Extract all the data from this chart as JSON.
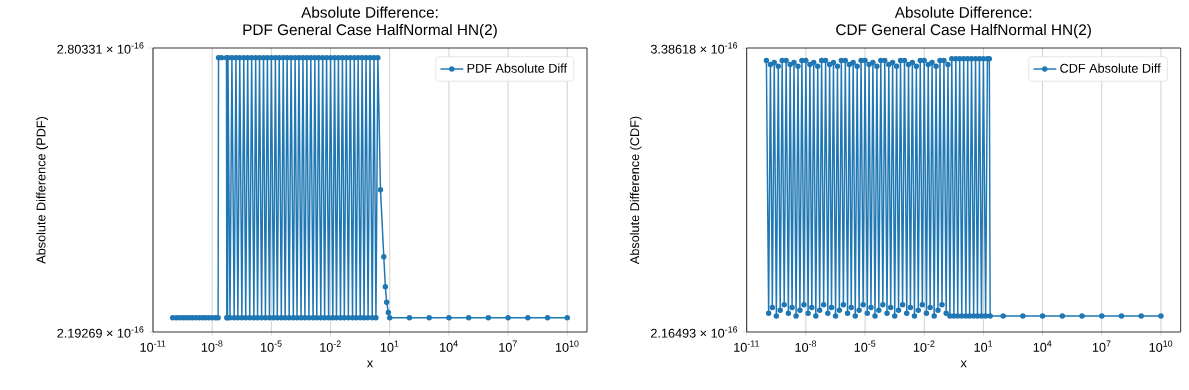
{
  "chart_data": [
    {
      "type": "line",
      "title": "Absolute Difference:",
      "subtitle": "PDF General Case HalfNormal HN(2)",
      "xlabel": "x",
      "ylabel": "Absolute Difference (PDF)",
      "log": "xy",
      "grid": "x",
      "legend": "top right",
      "marker": "circle",
      "line_style": "solid",
      "xlim": [
        1e-11,
        100000000000.0
      ],
      "ylim": [
        2.19269e-16,
        2.80331e-16
      ],
      "xticks": [
        {
          "value": 1e-11,
          "label": "10$^{-11}$"
        },
        {
          "value": 1e-08,
          "label": "10$^{-8}$"
        },
        {
          "value": 1e-05,
          "label": "10$^{-5}$"
        },
        {
          "value": 0.01,
          "label": "10$^{-2}$"
        },
        {
          "value": 10,
          "label": "10$^{1}$"
        },
        {
          "value": 10000,
          "label": "10$^{4}$"
        },
        {
          "value": 10000000,
          "label": "10$^{7}$"
        },
        {
          "value": 10000000000,
          "label": "10$^{10}$"
        }
      ],
      "yticks": [
        {
          "value": 2.19269e-16,
          "label": "2.19269 × 10$^{-16}$"
        },
        {
          "value": 2.80331e-16,
          "label": "2.80331 × 10$^{-16}$"
        }
      ],
      "series": [
        {
          "name": "PDF Absolute Diff",
          "color": "#1f77b4",
          "x": [
            1e-10,
            1.5e-10,
            2.2e-10,
            3.3e-10,
            4.7e-10,
            6.8e-10,
            1e-09,
            1.5e-09,
            2.2e-09,
            3.3e-09,
            4.7e-09,
            6.8e-09,
            1e-08,
            1.5e-08,
            2e-08,
            2.1e-08,
            3e-08,
            5.3e-08,
            5.5e-08,
            6e-08,
            6.3e-08,
            8e-08,
            1e-07,
            1.3e-07,
            1.6e-07,
            2e-07,
            2.5e-07,
            3.2e-07,
            4e-07,
            5e-07,
            6.3e-07,
            8e-07,
            1e-06,
            1.3e-06,
            1.6e-06,
            2e-06,
            2.5e-06,
            3.2e-06,
            4e-06,
            5e-06,
            6.3e-06,
            8e-06,
            1e-05,
            1.3e-05,
            1.6e-05,
            2e-05,
            2.5e-05,
            3.2e-05,
            4e-05,
            5e-05,
            6.3e-05,
            8e-05,
            0.0001,
            0.00013,
            0.00016,
            0.0002,
            0.00025,
            0.00032,
            0.0004,
            0.0005,
            0.00063,
            0.0008,
            0.001,
            0.0013,
            0.0016,
            0.002,
            0.0025,
            0.0032,
            0.004,
            0.005,
            0.0063,
            0.008,
            0.01,
            0.013,
            0.016,
            0.02,
            0.025,
            0.032,
            0.04,
            0.05,
            0.063,
            0.08,
            0.1,
            0.13,
            0.16,
            0.2,
            0.25,
            0.32,
            0.4,
            0.5,
            0.63,
            0.8,
            1,
            1.3,
            1.6,
            2,
            2.5,
            3.4,
            5,
            6,
            7,
            8.5,
            10,
            100,
            1000.0,
            10000.0,
            100000.0,
            1000000.0,
            10000000.0,
            100000000.0,
            1000000000.0,
            10000000000.0
          ],
          "values": [
            2.22e-16,
            2.22e-16,
            2.22e-16,
            2.22e-16,
            2.22e-16,
            2.22e-16,
            2.22e-16,
            2.22e-16,
            2.22e-16,
            2.22e-16,
            2.22e-16,
            2.22e-16,
            2.22e-16,
            2.22e-16,
            2.22e-16,
            2.78e-16,
            2.78e-16,
            2.78e-16,
            2.22e-16,
            2.22e-16,
            2.78e-16,
            2.22e-16,
            2.78e-16,
            2.22e-16,
            2.78e-16,
            2.22e-16,
            2.78e-16,
            2.22e-16,
            2.78e-16,
            2.22e-16,
            2.78e-16,
            2.22e-16,
            2.78e-16,
            2.22e-16,
            2.78e-16,
            2.22e-16,
            2.78e-16,
            2.22e-16,
            2.78e-16,
            2.22e-16,
            2.78e-16,
            2.22e-16,
            2.78e-16,
            2.22e-16,
            2.78e-16,
            2.22e-16,
            2.78e-16,
            2.22e-16,
            2.78e-16,
            2.22e-16,
            2.78e-16,
            2.22e-16,
            2.78e-16,
            2.22e-16,
            2.78e-16,
            2.22e-16,
            2.78e-16,
            2.22e-16,
            2.78e-16,
            2.22e-16,
            2.78e-16,
            2.22e-16,
            2.78e-16,
            2.22e-16,
            2.78e-16,
            2.22e-16,
            2.78e-16,
            2.22e-16,
            2.78e-16,
            2.22e-16,
            2.78e-16,
            2.22e-16,
            2.78e-16,
            2.22e-16,
            2.78e-16,
            2.22e-16,
            2.78e-16,
            2.22e-16,
            2.78e-16,
            2.22e-16,
            2.78e-16,
            2.22e-16,
            2.78e-16,
            2.22e-16,
            2.78e-16,
            2.22e-16,
            2.78e-16,
            2.22e-16,
            2.78e-16,
            2.22e-16,
            2.78e-16,
            2.22e-16,
            2.78e-16,
            2.22e-16,
            2.78e-16,
            2.22e-16,
            2.78e-16,
            2.48e-16,
            2.34e-16,
            2.28e-16,
            2.25e-16,
            2.23e-16,
            2.22e-16,
            2.22e-16,
            2.22e-16,
            2.22e-16,
            2.22e-16,
            2.22e-16,
            2.22e-16,
            2.22e-16,
            2.22e-16,
            2.22e-16
          ]
        }
      ]
    },
    {
      "type": "line",
      "title": "Absolute Difference:",
      "subtitle": "CDF General Case HalfNormal HN(2)",
      "xlabel": "x",
      "ylabel": "Absolute Difference (CDF)",
      "log": "xy",
      "grid": "x",
      "legend": "top right",
      "marker": "circle",
      "line_style": "solid",
      "xlim": [
        1e-11,
        100000000000.0
      ],
      "ylim": [
        2.16493e-16,
        3.38618e-16
      ],
      "xticks": [
        {
          "value": 1e-11,
          "label": "10$^{-11}$"
        },
        {
          "value": 1e-08,
          "label": "10$^{-8}$"
        },
        {
          "value": 1e-05,
          "label": "10$^{-5}$"
        },
        {
          "value": 0.01,
          "label": "10$^{-2}$"
        },
        {
          "value": 10,
          "label": "10$^{1}$"
        },
        {
          "value": 10000,
          "label": "10$^{4}$"
        },
        {
          "value": 10000000,
          "label": "10$^{7}$"
        },
        {
          "value": 10000000000,
          "label": "10$^{10}$"
        }
      ],
      "yticks": [
        {
          "value": 2.16493e-16,
          "label": "2.16493 × 10$^{-16}$"
        },
        {
          "value": 3.38618e-16,
          "label": "3.38618 × 10$^{-16}$"
        }
      ],
      "series": [
        {
          "name": "CDF Absolute Diff",
          "color": "#1f77b4",
          "x": [
            1e-10,
            1.3e-10,
            1.6e-10,
            2e-10,
            2.5e-10,
            3.2e-10,
            4e-10,
            5e-10,
            6.3e-10,
            8e-10,
            1e-09,
            1.3e-09,
            1.6e-09,
            2e-09,
            2.5e-09,
            3.2e-09,
            4e-09,
            5e-09,
            6.3e-09,
            8e-09,
            1e-08,
            1.3e-08,
            1.6e-08,
            2e-08,
            2.5e-08,
            3.2e-08,
            4e-08,
            5e-08,
            6.3e-08,
            8e-08,
            1e-07,
            1.3e-07,
            1.6e-07,
            2e-07,
            2.5e-07,
            3.2e-07,
            4e-07,
            5e-07,
            6.3e-07,
            8e-07,
            1e-06,
            1.3e-06,
            1.6e-06,
            2e-06,
            2.5e-06,
            3.2e-06,
            4e-06,
            5e-06,
            6.3e-06,
            8e-06,
            1e-05,
            1.3e-05,
            1.6e-05,
            2e-05,
            2.5e-05,
            3.2e-05,
            4e-05,
            5e-05,
            6.3e-05,
            8e-05,
            0.0001,
            0.00013,
            0.00016,
            0.0002,
            0.00025,
            0.00032,
            0.0004,
            0.0005,
            0.00063,
            0.0008,
            0.001,
            0.0013,
            0.0016,
            0.002,
            0.0025,
            0.0032,
            0.004,
            0.005,
            0.0063,
            0.008,
            0.01,
            0.013,
            0.016,
            0.02,
            0.025,
            0.032,
            0.04,
            0.05,
            0.063,
            0.08,
            0.1,
            0.13,
            0.16,
            0.2,
            0.25,
            0.32,
            0.4,
            0.5,
            0.63,
            0.8,
            1,
            1.3,
            1.6,
            2,
            2.5,
            3.2,
            4,
            5,
            6.3,
            8,
            10,
            13,
            16,
            20,
            22,
            100,
            1000.0,
            10000.0,
            100000.0,
            1000000.0,
            10000000.0,
            100000000.0,
            1000000000.0,
            10000000000.0
          ],
          "values": [
            3.32e-16,
            2.23e-16,
            3.3e-16,
            2.25e-16,
            3.31e-16,
            2.22e-16,
            3.29e-16,
            2.24e-16,
            3.32e-16,
            2.26e-16,
            3.32e-16,
            2.23e-16,
            3.3e-16,
            2.25e-16,
            3.31e-16,
            2.22e-16,
            3.29e-16,
            2.24e-16,
            3.32e-16,
            2.26e-16,
            3.32e-16,
            2.23e-16,
            3.3e-16,
            2.25e-16,
            3.31e-16,
            2.22e-16,
            3.29e-16,
            2.24e-16,
            3.32e-16,
            2.26e-16,
            3.32e-16,
            2.23e-16,
            3.3e-16,
            2.25e-16,
            3.31e-16,
            2.22e-16,
            3.29e-16,
            2.24e-16,
            3.32e-16,
            2.26e-16,
            3.32e-16,
            2.23e-16,
            3.3e-16,
            2.25e-16,
            3.31e-16,
            2.22e-16,
            3.29e-16,
            2.24e-16,
            3.32e-16,
            2.26e-16,
            3.32e-16,
            2.23e-16,
            3.3e-16,
            2.25e-16,
            3.31e-16,
            2.22e-16,
            3.29e-16,
            2.24e-16,
            3.32e-16,
            2.26e-16,
            3.32e-16,
            2.23e-16,
            3.3e-16,
            2.25e-16,
            3.31e-16,
            2.22e-16,
            3.29e-16,
            2.24e-16,
            3.32e-16,
            2.26e-16,
            3.32e-16,
            2.23e-16,
            3.3e-16,
            2.25e-16,
            3.31e-16,
            2.22e-16,
            3.29e-16,
            2.24e-16,
            3.32e-16,
            2.26e-16,
            3.32e-16,
            2.23e-16,
            3.3e-16,
            2.25e-16,
            3.31e-16,
            2.22e-16,
            3.29e-16,
            2.24e-16,
            3.32e-16,
            2.26e-16,
            3.32e-16,
            2.23e-16,
            3.3e-16,
            2.22e-16,
            3.33e-16,
            2.22e-16,
            3.33e-16,
            2.22e-16,
            3.33e-16,
            2.22e-16,
            3.33e-16,
            2.22e-16,
            3.33e-16,
            2.22e-16,
            3.33e-16,
            2.22e-16,
            3.33e-16,
            2.22e-16,
            3.33e-16,
            2.22e-16,
            3.33e-16,
            2.22e-16,
            3.33e-16,
            3.33e-16,
            2.22e-16,
            2.22e-16,
            2.22e-16,
            2.22e-16,
            2.22e-16,
            2.22e-16,
            2.22e-16,
            2.22e-16,
            2.22e-16,
            2.22e-16
          ]
        }
      ]
    }
  ]
}
